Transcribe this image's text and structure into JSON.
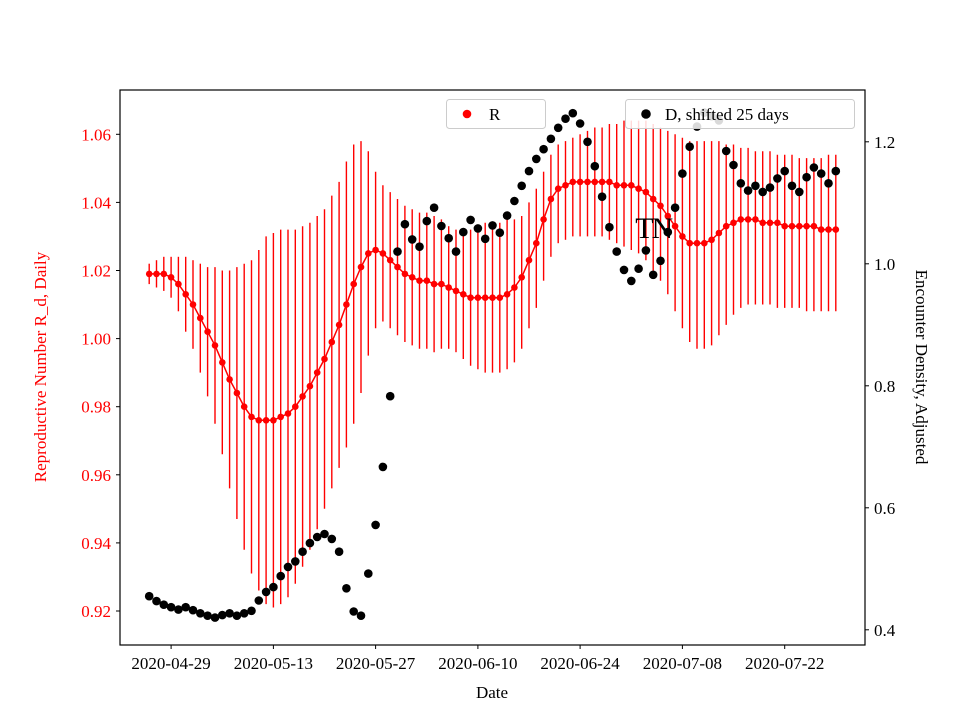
{
  "chart_data": {
    "type": "scatter",
    "title": "",
    "xlabel": "Date",
    "ylabel_left": "Reproductive Number R_d, Daily",
    "ylabel_right": "Encounter Density, Adjusted",
    "x_start": "2020-04-26",
    "xlim": [
      "2020-04-22",
      "2020-08-02"
    ],
    "ylim_left": [
      0.91,
      1.073
    ],
    "ylim_right": [
      0.375,
      1.285
    ],
    "x_ticks": [
      "2020-04-29",
      "2020-05-13",
      "2020-05-27",
      "2020-06-10",
      "2020-06-24",
      "2020-07-08",
      "2020-07-22"
    ],
    "y_ticks_left": [
      0.92,
      0.94,
      0.96,
      0.98,
      1.0,
      1.02,
      1.04,
      1.06
    ],
    "y_ticks_right": [
      0.4,
      0.6,
      0.8,
      1.0,
      1.2
    ],
    "grid": false,
    "colors": {
      "r": "#ff0000",
      "d": "#000000",
      "legend_border": "#cccccc"
    },
    "legend": [
      {
        "label": "R",
        "color": "#ff0000",
        "position": "upper center"
      },
      {
        "label": "D, shifted 25 days",
        "color": "#000000",
        "position": "upper right"
      }
    ],
    "annotation": {
      "text": "TN",
      "date": "2020-07-04",
      "value": 1.06,
      "axis": "right"
    },
    "series": [
      {
        "name": "R",
        "axis": "left",
        "style": "errorbar-dot-line",
        "cadence": "daily",
        "values": [
          1.019,
          1.019,
          1.019,
          1.018,
          1.016,
          1.013,
          1.01,
          1.006,
          1.002,
          0.998,
          0.993,
          0.988,
          0.984,
          0.98,
          0.977,
          0.976,
          0.976,
          0.976,
          0.977,
          0.978,
          0.98,
          0.983,
          0.986,
          0.99,
          0.994,
          0.999,
          1.004,
          1.01,
          1.016,
          1.021,
          1.025,
          1.026,
          1.025,
          1.023,
          1.021,
          1.019,
          1.018,
          1.017,
          1.017,
          1.016,
          1.016,
          1.015,
          1.014,
          1.013,
          1.012,
          1.012,
          1.012,
          1.012,
          1.012,
          1.013,
          1.015,
          1.018,
          1.023,
          1.028,
          1.035,
          1.041,
          1.044,
          1.045,
          1.046,
          1.046,
          1.046,
          1.046,
          1.046,
          1.046,
          1.045,
          1.045,
          1.045,
          1.044,
          1.043,
          1.041,
          1.039,
          1.036,
          1.033,
          1.03,
          1.028,
          1.028,
          1.028,
          1.029,
          1.031,
          1.033,
          1.034,
          1.035,
          1.035,
          1.035,
          1.034,
          1.034,
          1.034,
          1.033,
          1.033,
          1.033,
          1.033,
          1.033,
          1.032,
          1.032,
          1.032
        ],
        "lo": [
          1.016,
          1.015,
          1.014,
          1.012,
          1.008,
          1.002,
          0.997,
          0.99,
          0.983,
          0.975,
          0.966,
          0.956,
          0.947,
          0.938,
          0.931,
          0.926,
          0.922,
          0.921,
          0.922,
          0.924,
          0.928,
          0.933,
          0.938,
          0.944,
          0.95,
          0.956,
          0.962,
          0.968,
          0.975,
          0.984,
          0.995,
          1.003,
          1.005,
          1.003,
          1.001,
          0.999,
          0.998,
          0.997,
          0.997,
          0.996,
          0.997,
          0.997,
          0.996,
          0.994,
          0.992,
          0.991,
          0.99,
          0.99,
          0.99,
          0.991,
          0.993,
          0.997,
          1.003,
          1.009,
          1.017,
          1.024,
          1.028,
          1.029,
          1.03,
          1.03,
          1.03,
          1.03,
          1.03,
          1.029,
          1.028,
          1.027,
          1.026,
          1.025,
          1.023,
          1.02,
          1.017,
          1.013,
          1.008,
          1.003,
          0.999,
          0.997,
          0.997,
          0.998,
          1.001,
          1.004,
          1.007,
          1.009,
          1.01,
          1.01,
          1.01,
          1.01,
          1.009,
          1.009,
          1.009,
          1.009,
          1.008,
          1.008,
          1.008,
          1.008,
          1.008
        ],
        "hi": [
          1.022,
          1.023,
          1.024,
          1.024,
          1.024,
          1.024,
          1.023,
          1.022,
          1.021,
          1.021,
          1.02,
          1.02,
          1.021,
          1.022,
          1.023,
          1.026,
          1.03,
          1.031,
          1.032,
          1.032,
          1.032,
          1.033,
          1.034,
          1.036,
          1.038,
          1.042,
          1.046,
          1.052,
          1.057,
          1.058,
          1.055,
          1.049,
          1.045,
          1.043,
          1.041,
          1.039,
          1.038,
          1.037,
          1.037,
          1.036,
          1.035,
          1.033,
          1.032,
          1.032,
          1.032,
          1.033,
          1.034,
          1.034,
          1.034,
          1.035,
          1.035,
          1.036,
          1.04,
          1.044,
          1.049,
          1.054,
          1.057,
          1.058,
          1.059,
          1.06,
          1.061,
          1.062,
          1.062,
          1.063,
          1.063,
          1.064,
          1.064,
          1.064,
          1.064,
          1.063,
          1.062,
          1.061,
          1.06,
          1.059,
          1.058,
          1.058,
          1.058,
          1.058,
          1.058,
          1.057,
          1.057,
          1.056,
          1.056,
          1.055,
          1.055,
          1.055,
          1.054,
          1.054,
          1.054,
          1.053,
          1.053,
          1.053,
          1.053,
          1.054,
          1.054
        ]
      },
      {
        "name": "D, shifted 25 days",
        "axis": "right",
        "style": "dot",
        "cadence": "daily",
        "values": [
          0.455,
          0.447,
          0.441,
          0.437,
          0.433,
          0.437,
          0.432,
          0.427,
          0.423,
          0.42,
          0.424,
          0.427,
          0.423,
          0.427,
          0.431,
          0.448,
          0.462,
          0.47,
          0.488,
          0.503,
          0.512,
          0.528,
          0.542,
          0.552,
          0.557,
          0.549,
          0.528,
          0.468,
          0.43,
          0.423,
          0.492,
          0.572,
          0.667,
          0.783,
          1.02,
          1.065,
          1.04,
          1.028,
          1.07,
          1.092,
          1.062,
          1.042,
          1.02,
          1.052,
          1.072,
          1.058,
          1.041,
          1.063,
          1.051,
          1.079,
          1.103,
          1.128,
          1.152,
          1.172,
          1.188,
          1.205,
          1.223,
          1.238,
          1.247,
          1.23,
          1.2,
          1.16,
          1.11,
          1.06,
          1.02,
          0.99,
          0.972,
          0.992,
          1.022,
          0.982,
          1.005,
          1.052,
          1.092,
          1.148,
          1.192,
          1.225,
          1.248,
          1.242,
          1.235,
          1.185,
          1.162,
          1.132,
          1.12,
          1.128,
          1.118,
          1.125,
          1.14,
          1.152,
          1.128,
          1.118,
          1.142,
          1.158,
          1.148,
          1.132,
          1.152
        ]
      }
    ]
  }
}
